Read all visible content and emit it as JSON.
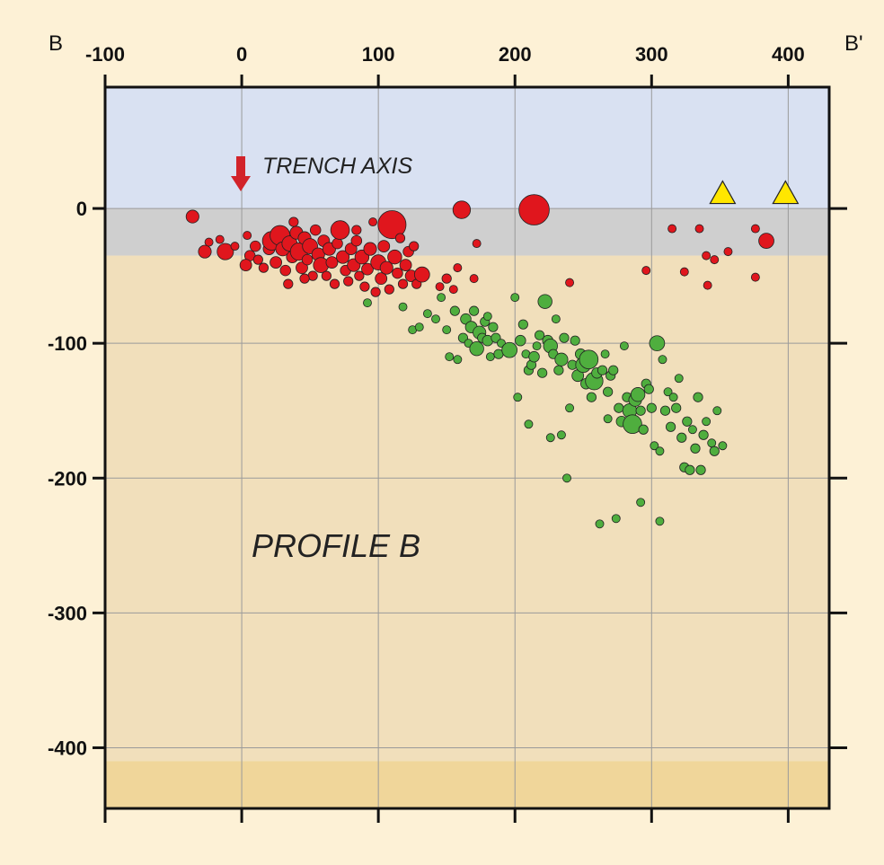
{
  "chart_data": {
    "type": "scatter",
    "title": "",
    "xlabel": "",
    "ylabel": "",
    "xlim": [
      -100,
      430
    ],
    "ylim": [
      -445,
      90
    ],
    "x_ticks": [
      -100,
      0,
      100,
      200,
      300,
      400
    ],
    "y_ticks": [
      0,
      -100,
      -200,
      -300,
      -400
    ],
    "x_tick_labels": [
      "-100",
      "0",
      "100",
      "200",
      "300",
      "400"
    ],
    "y_tick_labels": [
      "0",
      "-100",
      "-200",
      "-300",
      "-400"
    ],
    "grid": true,
    "end_labels": {
      "left": "B",
      "right": "B'"
    },
    "annotations": {
      "trench_axis": {
        "text": "TRENCH AXIS",
        "x": 0
      },
      "profile": {
        "text": "PROFILE B"
      }
    },
    "layers": [
      {
        "name": "water",
        "from": 90,
        "to": 0,
        "color": "#d9e1f2"
      },
      {
        "name": "crust",
        "from": 0,
        "to": -35,
        "color": "#cfcfcf"
      },
      {
        "name": "mantle",
        "from": -35,
        "to": -410,
        "color": "#f1dfbb"
      },
      {
        "name": "lower",
        "from": -410,
        "to": -445,
        "color": "#f0d69a"
      }
    ],
    "colors": {
      "shallow": "#e0161d",
      "intermediate": "#4fae3e",
      "volcano": "#ffe600",
      "trench_arrow": "#d2232a"
    },
    "series": [
      {
        "key": "shallow",
        "color": "#e0161d",
        "points": [
          [
            -36,
            -6,
            1.1
          ],
          [
            -27,
            -32,
            1.1
          ],
          [
            -12,
            -32,
            1.4
          ],
          [
            -24,
            -25,
            0.7
          ],
          [
            -16,
            -23,
            0.7
          ],
          [
            -5,
            -28,
            0.7
          ],
          [
            4,
            -20,
            0.7
          ],
          [
            6,
            -35,
            0.9
          ],
          [
            3,
            -42,
            1
          ],
          [
            12,
            -38,
            0.8
          ],
          [
            20,
            -30,
            1
          ],
          [
            22,
            -24,
            1.6
          ],
          [
            25,
            -40,
            1
          ],
          [
            28,
            -20,
            1.7
          ],
          [
            30,
            -30,
            1.2
          ],
          [
            32,
            -46,
            0.9
          ],
          [
            35,
            -26,
            1.3
          ],
          [
            37,
            -36,
            1
          ],
          [
            40,
            -18,
            1.1
          ],
          [
            42,
            -32,
            1.5
          ],
          [
            44,
            -44,
            1
          ],
          [
            46,
            -22,
            1.1
          ],
          [
            48,
            -38,
            0.9
          ],
          [
            50,
            -28,
            1.3
          ],
          [
            52,
            -50,
            0.8
          ],
          [
            54,
            -16,
            0.9
          ],
          [
            56,
            -34,
            1.1
          ],
          [
            58,
            -42,
            1.3
          ],
          [
            60,
            -24,
            1
          ],
          [
            62,
            -50,
            0.8
          ],
          [
            64,
            -30,
            1.1
          ],
          [
            66,
            -40,
            1
          ],
          [
            70,
            -26,
            0.9
          ],
          [
            72,
            -16,
            1.6
          ],
          [
            74,
            -36,
            1.1
          ],
          [
            76,
            -46,
            0.9
          ],
          [
            78,
            -54,
            0.8
          ],
          [
            80,
            -30,
            1
          ],
          [
            82,
            -42,
            1.1
          ],
          [
            84,
            -24,
            0.9
          ],
          [
            86,
            -50,
            0.8
          ],
          [
            88,
            -36,
            1.2
          ],
          [
            90,
            -58,
            0.8
          ],
          [
            92,
            -45,
            1
          ],
          [
            94,
            -30,
            1.1
          ],
          [
            96,
            -10,
            0.7
          ],
          [
            98,
            -62,
            0.8
          ],
          [
            100,
            -40,
            1.3
          ],
          [
            102,
            -52,
            1
          ],
          [
            104,
            -28,
            1
          ],
          [
            106,
            -44,
            1.1
          ],
          [
            108,
            -60,
            0.8
          ],
          [
            110,
            -12,
            2.4
          ],
          [
            112,
            -36,
            1.2
          ],
          [
            114,
            -48,
            0.9
          ],
          [
            116,
            -22,
            0.8
          ],
          [
            118,
            -56,
            0.8
          ],
          [
            120,
            -42,
            1
          ],
          [
            122,
            -32,
            0.9
          ],
          [
            124,
            -50,
            1
          ],
          [
            126,
            -28,
            0.8
          ],
          [
            128,
            -56,
            0.8
          ],
          [
            132,
            -49,
            1.3
          ],
          [
            145,
            -58,
            0.7
          ],
          [
            150,
            -52,
            0.8
          ],
          [
            155,
            -60,
            0.7
          ],
          [
            158,
            -44,
            0.7
          ],
          [
            170,
            -52,
            0.7
          ],
          [
            172,
            -26,
            0.7
          ],
          [
            161,
            -1,
            1.5
          ],
          [
            214,
            -1,
            2.6
          ],
          [
            240,
            -55,
            0.7
          ],
          [
            296,
            -46,
            0.7
          ],
          [
            315,
            -15,
            0.7
          ],
          [
            324,
            -47,
            0.7
          ],
          [
            335,
            -15,
            0.7
          ],
          [
            340,
            -35,
            0.7
          ],
          [
            346,
            -38,
            0.7
          ],
          [
            341,
            -57,
            0.7
          ],
          [
            356,
            -32,
            0.7
          ],
          [
            376,
            -15,
            0.7
          ],
          [
            376,
            -51,
            0.7
          ],
          [
            384,
            -24,
            1.3
          ],
          [
            10,
            -28,
            0.9
          ],
          [
            16,
            -44,
            0.8
          ],
          [
            34,
            -56,
            0.8
          ],
          [
            46,
            -52,
            0.8
          ],
          [
            68,
            -56,
            0.8
          ],
          [
            84,
            -16,
            0.8
          ],
          [
            38,
            -10,
            0.8
          ]
        ]
      },
      {
        "key": "intermediate",
        "color": "#4fae3e",
        "points": [
          [
            92,
            -70,
            0.7
          ],
          [
            118,
            -73,
            0.7
          ],
          [
            125,
            -90,
            0.7
          ],
          [
            130,
            -88,
            0.7
          ],
          [
            136,
            -78,
            0.7
          ],
          [
            142,
            -82,
            0.7
          ],
          [
            146,
            -66,
            0.7
          ],
          [
            150,
            -90,
            0.7
          ],
          [
            152,
            -110,
            0.7
          ],
          [
            156,
            -76,
            0.8
          ],
          [
            158,
            -112,
            0.7
          ],
          [
            162,
            -96,
            0.8
          ],
          [
            164,
            -82,
            0.9
          ],
          [
            166,
            -100,
            0.7
          ],
          [
            168,
            -88,
            1
          ],
          [
            170,
            -76,
            0.8
          ],
          [
            172,
            -104,
            1.2
          ],
          [
            174,
            -92,
            1.1
          ],
          [
            176,
            -96,
            0.8
          ],
          [
            178,
            -84,
            0.8
          ],
          [
            180,
            -98,
            0.9
          ],
          [
            182,
            -110,
            0.7
          ],
          [
            184,
            -88,
            0.8
          ],
          [
            186,
            -96,
            0.8
          ],
          [
            188,
            -108,
            0.8
          ],
          [
            190,
            -100,
            0.7
          ],
          [
            194,
            -104,
            0.8
          ],
          [
            196,
            -105,
            1.3
          ],
          [
            200,
            -66,
            0.7
          ],
          [
            202,
            -140,
            0.7
          ],
          [
            204,
            -98,
            0.9
          ],
          [
            206,
            -86,
            0.8
          ],
          [
            208,
            -108,
            0.7
          ],
          [
            210,
            -120,
            0.8
          ],
          [
            212,
            -116,
            0.8
          ],
          [
            214,
            -110,
            0.9
          ],
          [
            216,
            -102,
            0.7
          ],
          [
            218,
            -94,
            0.8
          ],
          [
            220,
            -122,
            0.8
          ],
          [
            222,
            -69,
            1.2
          ],
          [
            224,
            -98,
            0.9
          ],
          [
            226,
            -102,
            1.2
          ],
          [
            228,
            -108,
            0.8
          ],
          [
            230,
            -82,
            0.7
          ],
          [
            232,
            -120,
            0.8
          ],
          [
            234,
            -112,
            1.1
          ],
          [
            236,
            -96,
            0.8
          ],
          [
            238,
            -200,
            0.7
          ],
          [
            240,
            -148,
            0.7
          ],
          [
            242,
            -116,
            0.8
          ],
          [
            244,
            -98,
            0.8
          ],
          [
            246,
            -124,
            1
          ],
          [
            248,
            -108,
            0.9
          ],
          [
            250,
            -116,
            1.3
          ],
          [
            252,
            -130,
            0.9
          ],
          [
            254,
            -112,
            1.6
          ],
          [
            256,
            -140,
            0.8
          ],
          [
            258,
            -128,
            1.5
          ],
          [
            260,
            -122,
            0.9
          ],
          [
            262,
            -234,
            0.7
          ],
          [
            264,
            -120,
            0.8
          ],
          [
            266,
            -108,
            0.7
          ],
          [
            268,
            -136,
            0.8
          ],
          [
            270,
            -124,
            0.8
          ],
          [
            272,
            -120,
            0.8
          ],
          [
            274,
            -230,
            0.7
          ],
          [
            276,
            -148,
            0.8
          ],
          [
            278,
            -158,
            0.9
          ],
          [
            280,
            -102,
            0.7
          ],
          [
            282,
            -140,
            0.8
          ],
          [
            284,
            -150,
            1.2
          ],
          [
            286,
            -160,
            1.6
          ],
          [
            288,
            -142,
            1.1
          ],
          [
            290,
            -138,
            1.2
          ],
          [
            292,
            -150,
            0.8
          ],
          [
            294,
            -164,
            0.8
          ],
          [
            296,
            -130,
            0.8
          ],
          [
            298,
            -134,
            0.8
          ],
          [
            300,
            -148,
            0.8
          ],
          [
            302,
            -176,
            0.7
          ],
          [
            304,
            -100,
            1.3
          ],
          [
            306,
            -180,
            0.7
          ],
          [
            306,
            -232,
            0.7
          ],
          [
            308,
            -112,
            0.7
          ],
          [
            310,
            -150,
            0.8
          ],
          [
            312,
            -136,
            0.7
          ],
          [
            314,
            -162,
            0.8
          ],
          [
            316,
            -140,
            0.7
          ],
          [
            318,
            -148,
            0.8
          ],
          [
            320,
            -126,
            0.7
          ],
          [
            322,
            -170,
            0.8
          ],
          [
            324,
            -192,
            0.8
          ],
          [
            326,
            -158,
            0.8
          ],
          [
            328,
            -194,
            0.8
          ],
          [
            330,
            -164,
            0.7
          ],
          [
            332,
            -178,
            0.8
          ],
          [
            334,
            -140,
            0.8
          ],
          [
            336,
            -194,
            0.8
          ],
          [
            338,
            -168,
            0.8
          ],
          [
            340,
            -158,
            0.7
          ],
          [
            344,
            -174,
            0.7
          ],
          [
            346,
            -180,
            0.8
          ],
          [
            352,
            -176,
            0.7
          ],
          [
            348,
            -150,
            0.7
          ],
          [
            292,
            -218,
            0.7
          ],
          [
            268,
            -156,
            0.7
          ],
          [
            234,
            -168,
            0.7
          ],
          [
            226,
            -170,
            0.7
          ],
          [
            210,
            -160,
            0.7
          ],
          [
            180,
            -80,
            0.7
          ]
        ]
      },
      {
        "key": "volcano",
        "color": "#ffe600",
        "points": [
          [
            352,
            11
          ],
          [
            398,
            11
          ]
        ]
      }
    ]
  }
}
